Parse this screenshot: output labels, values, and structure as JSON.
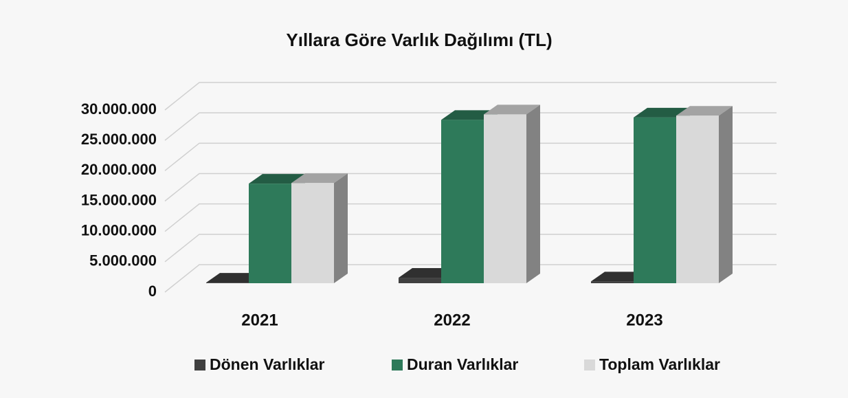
{
  "chart_data": {
    "type": "bar3d",
    "title": "Yıllara Göre Varlık Dağılımı (TL)",
    "categories": [
      "2021",
      "2022",
      "2023"
    ],
    "series": [
      {
        "name": "Dönen Varlıklar",
        "color": "#404040",
        "values": [
          100000,
          900000,
          300000
        ]
      },
      {
        "name": "Duran Varlıklar",
        "color": "#2e7a5a",
        "values": [
          16400000,
          26900000,
          27300000
        ]
      },
      {
        "name": "Toplam Varlıklar",
        "color": "#d9d9d9",
        "values": [
          16500000,
          27800000,
          27600000
        ]
      }
    ],
    "ylim": [
      0,
      30000000
    ],
    "yticks": [
      0,
      {
        "value": 5000000,
        "label": "5.000.000"
      },
      {
        "value": 10000000,
        "label": "10.000.000"
      },
      {
        "value": 15000000,
        "label": "15.000.000"
      },
      {
        "value": 20000000,
        "label": "20.000.000"
      },
      {
        "value": 25000000,
        "label": "25.000.000"
      },
      {
        "value": 30000000,
        "label": "30.000.000"
      }
    ],
    "grid": true,
    "legend": "bottom"
  }
}
